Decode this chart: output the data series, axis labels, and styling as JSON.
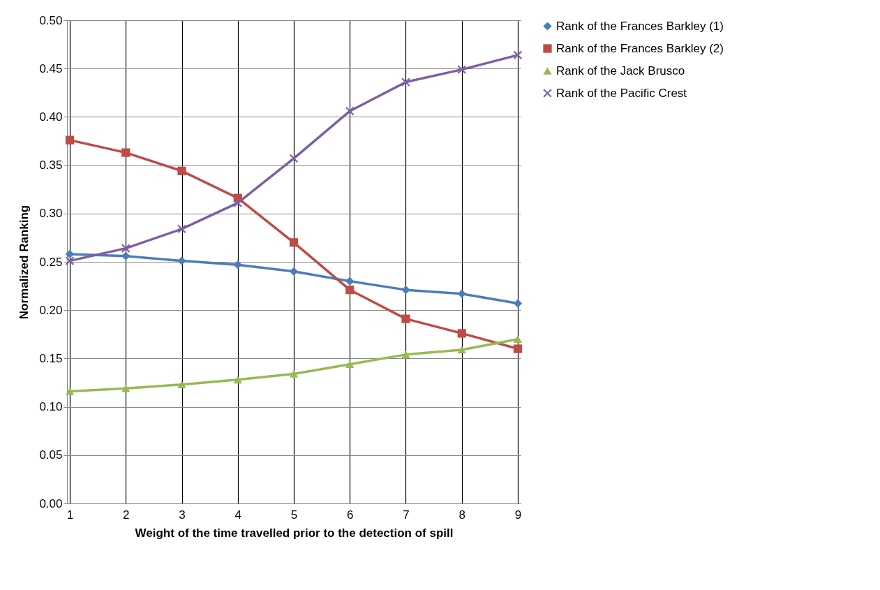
{
  "chart_data": {
    "type": "line",
    "xlabel": "Weight of the time travelled prior to the detection of spill",
    "ylabel": "Normalized Ranking",
    "categories": [
      "1",
      "2",
      "3",
      "4",
      "5",
      "6",
      "7",
      "8",
      "9"
    ],
    "series": [
      {
        "name": "Rank of the Frances Barkley (1)",
        "color": "#4a7ebb",
        "marker": "diamond",
        "values": [
          0.258,
          0.256,
          0.251,
          0.247,
          0.24,
          0.23,
          0.221,
          0.217,
          0.207
        ]
      },
      {
        "name": "Rank of the Frances Barkley (2)",
        "color": "#be4b48",
        "marker": "square",
        "values": [
          0.376,
          0.363,
          0.344,
          0.316,
          0.27,
          0.221,
          0.191,
          0.176,
          0.16
        ]
      },
      {
        "name": "Rank of the Jack Brusco",
        "color": "#98b954",
        "marker": "triangle",
        "values": [
          0.116,
          0.119,
          0.123,
          0.128,
          0.134,
          0.144,
          0.154,
          0.159,
          0.17
        ]
      },
      {
        "name": "Rank of the Pacific Crest",
        "color": "#7d60a0",
        "marker": "cross",
        "values": [
          0.251,
          0.264,
          0.284,
          0.311,
          0.357,
          0.406,
          0.436,
          0.449,
          0.464
        ]
      }
    ],
    "ylim": [
      0,
      0.5
    ],
    "yticks": [
      {
        "value": 0,
        "label": "0.00"
      },
      0.05,
      {
        "value": 0.1,
        "label": "0.10"
      },
      0.15,
      {
        "value": 0.2,
        "label": "0.20"
      },
      0.25,
      {
        "value": 0.3,
        "label": "0.30"
      },
      0.35,
      {
        "value": 0.4,
        "label": "0.40"
      },
      0.45,
      {
        "value": 0.5,
        "label": "0.50"
      }
    ],
    "grid": true,
    "legend": "right"
  }
}
